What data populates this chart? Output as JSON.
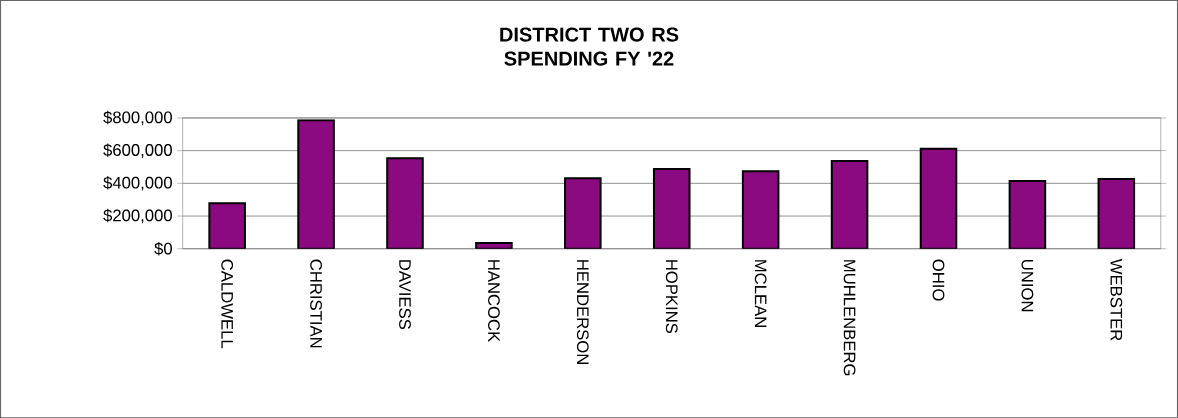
{
  "chart_data": {
    "type": "bar",
    "title": "DISTRICT TWO RS SPENDING FY '22",
    "categories": [
      "CALDWELL",
      "CHRISTIAN",
      "DAVIESS",
      "HANCOCK",
      "HENDERSON",
      "HOPKINS",
      "MCLEAN",
      "MUHLENBERG",
      "OHIO",
      "UNION",
      "WEBSTER"
    ],
    "values": [
      278000,
      786000,
      553000,
      35000,
      431000,
      487000,
      474000,
      536000,
      612000,
      414000,
      427000
    ],
    "color": "#8b0a80",
    "ylim": [
      0,
      800000
    ],
    "yticks": [
      {
        "value": 0,
        "label": "$0"
      },
      {
        "value": 200000,
        "label": "$200,000"
      },
      {
        "value": 400000,
        "label": "$400,000"
      },
      {
        "value": 600000,
        "label": "$600,000"
      },
      {
        "value": 800000,
        "label": "$800,000"
      }
    ],
    "grid": "y"
  }
}
